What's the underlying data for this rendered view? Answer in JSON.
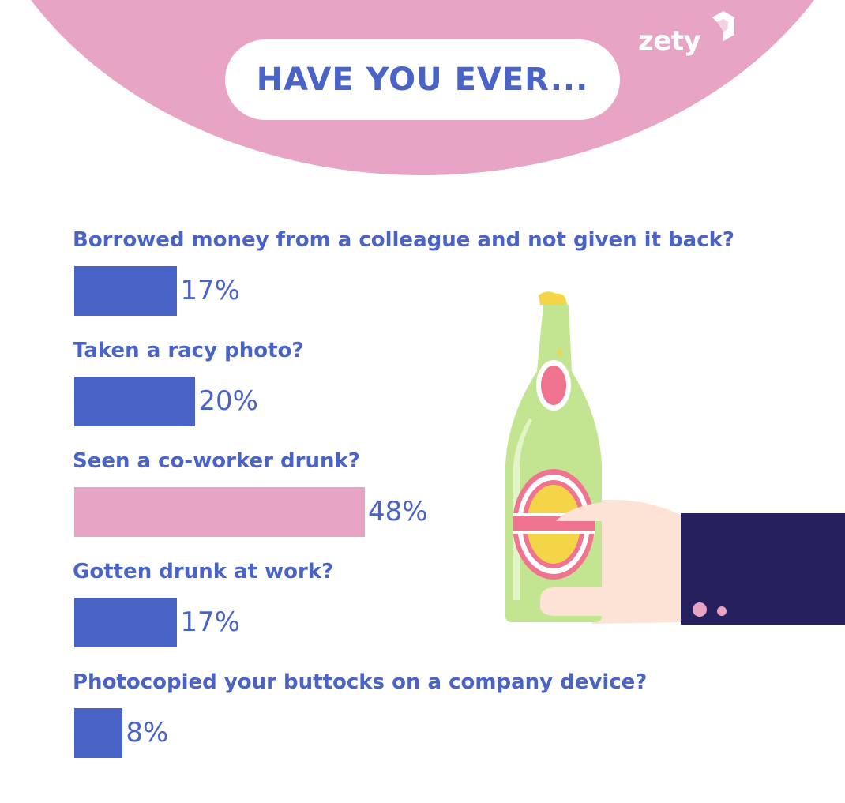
{
  "header": {
    "title": "HAVE YOU EVER...",
    "logo_text": "zety"
  },
  "colors": {
    "accent_blue": "#4a63c6",
    "accent_pink": "#e8a4c4",
    "dark_navy": "#27205e"
  },
  "chart_data": {
    "type": "bar",
    "orientation": "horizontal",
    "categories": [
      "Borrowed money from a colleague and not given it back?",
      "Taken a racy photo?",
      "Seen a co-worker drunk?",
      "Gotten drunk at work?",
      "Photocopied your buttocks on a company device?"
    ],
    "values": [
      17,
      20,
      48,
      17,
      8
    ],
    "value_labels": [
      "17%",
      "20%",
      "48%",
      "17%",
      "8%"
    ],
    "unit": "%",
    "highlight_index": 2,
    "bar_colors": [
      "#4a63c6",
      "#4a63c6",
      "#e8a4c4",
      "#4a63c6",
      "#4a63c6"
    ],
    "xlim": [
      0,
      100
    ],
    "grid": false,
    "legend": "none"
  },
  "illustration": {
    "icon": "hand-holding-beer-bottle-icon"
  }
}
